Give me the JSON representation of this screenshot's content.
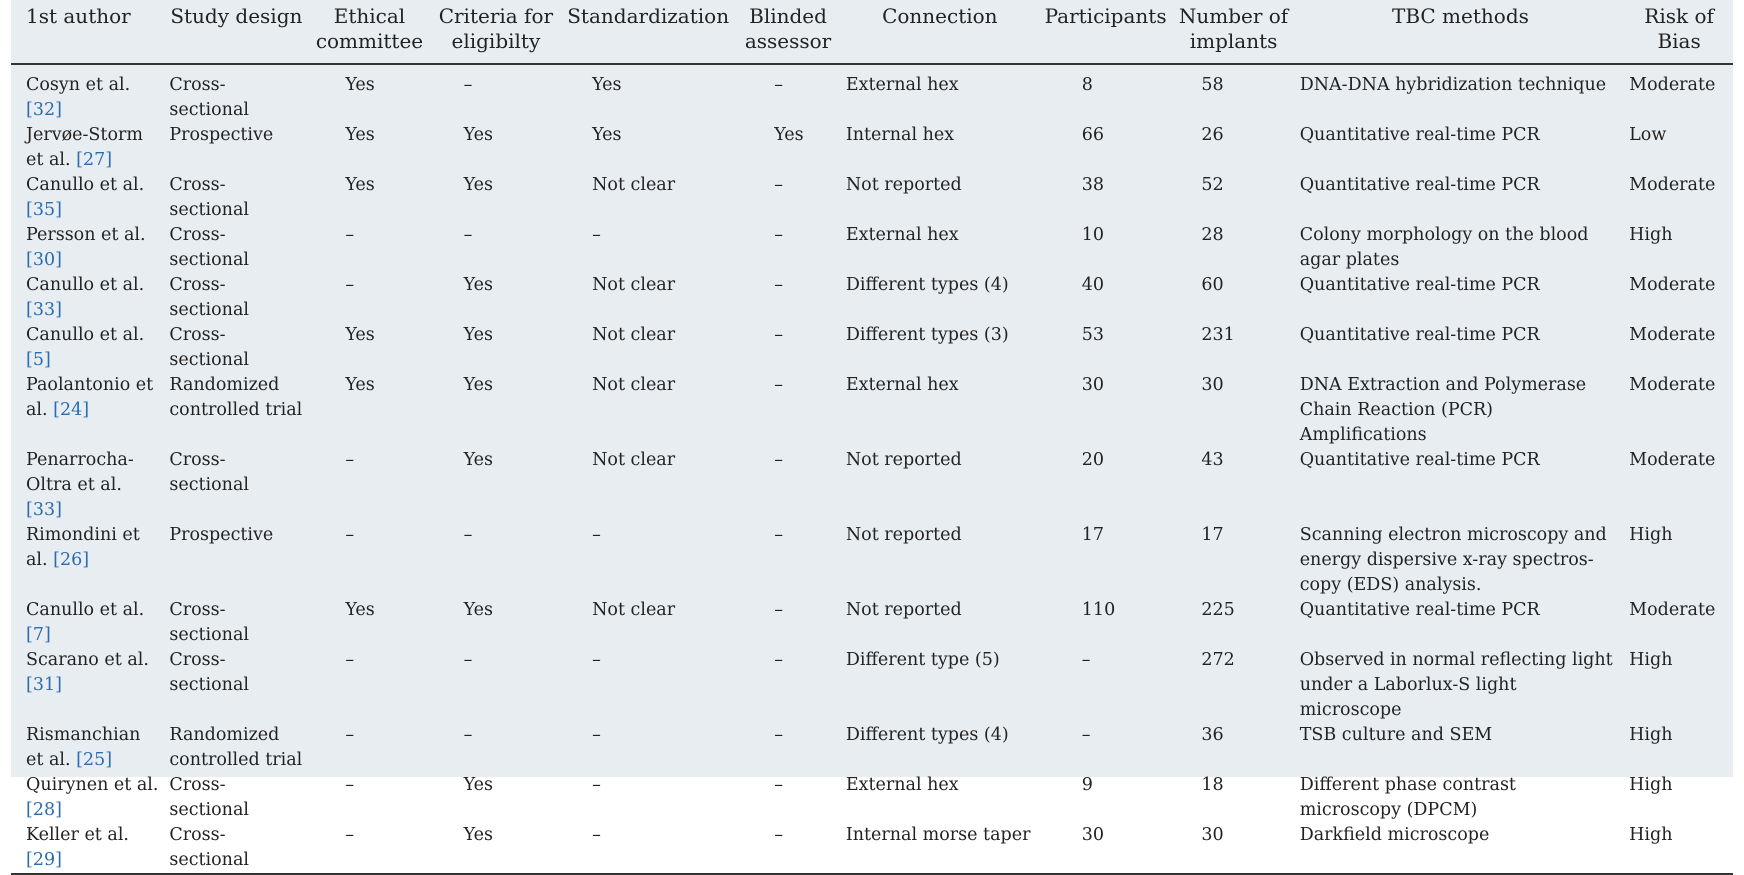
{
  "table": {
    "headers": {
      "author": "1st author",
      "design": "Study design",
      "ethical": "Ethical committee",
      "criteria": "Criteria for eligibilty",
      "standardization": "Standardization",
      "blinded": "Blinded assessor",
      "connection": "Connection",
      "participants": "Participants",
      "implants": "Number of implants",
      "tbc": "TBC methods",
      "risk": "Risk of Bias"
    },
    "rows": [
      {
        "author": "Cosyn et al.",
        "ref": "32",
        "design": "Cross-sectional",
        "ethical": "Yes",
        "criteria": "–",
        "standardization": "Yes",
        "blinded": "–",
        "connection": "External hex",
        "participants": "8",
        "implants": "58",
        "tbc": "DNA-DNA hybridization technique",
        "risk": "Moderate"
      },
      {
        "author": "Jervøe-Storm et al.",
        "ref": "27",
        "design": "Prospective",
        "ethical": "Yes",
        "criteria": "Yes",
        "standardization": "Yes",
        "blinded": "Yes",
        "connection": "Internal hex",
        "participants": "66",
        "implants": "26",
        "tbc": "Quantitative real-time PCR",
        "risk": "Low"
      },
      {
        "author": "Canullo et al.",
        "ref": "35",
        "design": "Cross-sectional",
        "ethical": "Yes",
        "criteria": "Yes",
        "standardization": "Not clear",
        "blinded": "–",
        "connection": "Not reported",
        "participants": "38",
        "implants": "52",
        "tbc": "Quantitative real-time PCR",
        "risk": "Moderate"
      },
      {
        "author": "Persson et al.",
        "ref": "30",
        "design": "Cross-sectional",
        "ethical": "–",
        "criteria": "–",
        "standardization": "–",
        "blinded": "–",
        "connection": "External hex",
        "participants": "10",
        "implants": "28",
        "tbc": "Colony morphology on the blood agar plates",
        "risk": "High"
      },
      {
        "author": "Canullo et al.",
        "ref": "33",
        "design": "Cross-sectional",
        "ethical": "–",
        "criteria": "Yes",
        "standardization": "Not clear",
        "blinded": "–",
        "connection": "Different types (4)",
        "participants": "40",
        "implants": "60",
        "tbc": "Quantitative real-time PCR",
        "risk": "Moderate"
      },
      {
        "author": "Canullo et al.",
        "ref": "5",
        "design": "Cross-sectional",
        "ethical": "Yes",
        "criteria": "Yes",
        "standardization": "Not clear",
        "blinded": "–",
        "connection": "Different types (3)",
        "participants": "53",
        "implants": "231",
        "tbc": "Quantitative real-time PCR",
        "risk": "Moderate"
      },
      {
        "author": "Paolantonio et al.",
        "ref": "24",
        "design": "Randomized controlled trial",
        "ethical": "Yes",
        "criteria": "Yes",
        "standardization": "Not clear",
        "blinded": "–",
        "connection": "External hex",
        "participants": "30",
        "implants": "30",
        "tbc": "DNA Extraction and Polymerase Chain Reaction (PCR) Amplifications",
        "risk": "Moderate"
      },
      {
        "author": "Penarrocha-Oltra et al.",
        "ref": "33",
        "design": "Cross-sectional",
        "ethical": "–",
        "criteria": "Yes",
        "standardization": "Not clear",
        "blinded": "–",
        "connection": "Not reported",
        "participants": "20",
        "implants": "43",
        "tbc": "Quantitative real-time PCR",
        "risk": "Moderate"
      },
      {
        "author": "Rimondini et al.",
        "ref": "26",
        "design": "Prospective",
        "ethical": "–",
        "criteria": "–",
        "standardization": "–",
        "blinded": "–",
        "connection": "Not reported",
        "participants": "17",
        "implants": "17",
        "tbc": "Scanning electron microscopy and energy dispersive x-ray spectros-copy (EDS) analysis.",
        "risk": "High"
      },
      {
        "author": "Canullo et al.",
        "ref": "7",
        "design": "Cross-sectional",
        "ethical": "Yes",
        "criteria": "Yes",
        "standardization": "Not clear",
        "blinded": "–",
        "connection": "Not reported",
        "participants": "110",
        "implants": "225",
        "tbc": "Quantitative real-time PCR",
        "risk": "Moderate"
      },
      {
        "author": "Scarano et al.",
        "ref": "31",
        "design": "Cross-sectional",
        "ethical": "–",
        "criteria": "–",
        "standardization": "–",
        "blinded": "–",
        "connection": "Different type (5)",
        "participants": "–",
        "implants": "272",
        "tbc": "Observed in normal reflecting light under a Laborlux-S light microscope",
        "risk": "High"
      },
      {
        "author": "Rismanchian et al.",
        "ref": "25",
        "design": "Randomized controlled trial",
        "ethical": "–",
        "criteria": "–",
        "standardization": "–",
        "blinded": "–",
        "connection": "Different types (4)",
        "participants": "–",
        "implants": "36",
        "tbc": "TSB culture and SEM",
        "risk": "High"
      },
      {
        "author": "Quirynen et al.",
        "ref": "28",
        "design": "Cross-sectional",
        "ethical": "–",
        "criteria": "Yes",
        "standardization": "–",
        "blinded": "–",
        "connection": "External hex",
        "participants": "9",
        "implants": "18",
        "tbc": "Different phase contrast microscopy (DPCM)",
        "risk": "High"
      },
      {
        "author": "Keller et al.",
        "ref": "29",
        "design": "Cross-sectional",
        "ethical": "–",
        "criteria": "Yes",
        "standardization": "–",
        "blinded": "–",
        "connection": "Internal morse taper",
        "participants": "30",
        "implants": "30",
        "tbc": "Darkfield microscope",
        "risk": "High"
      }
    ]
  }
}
